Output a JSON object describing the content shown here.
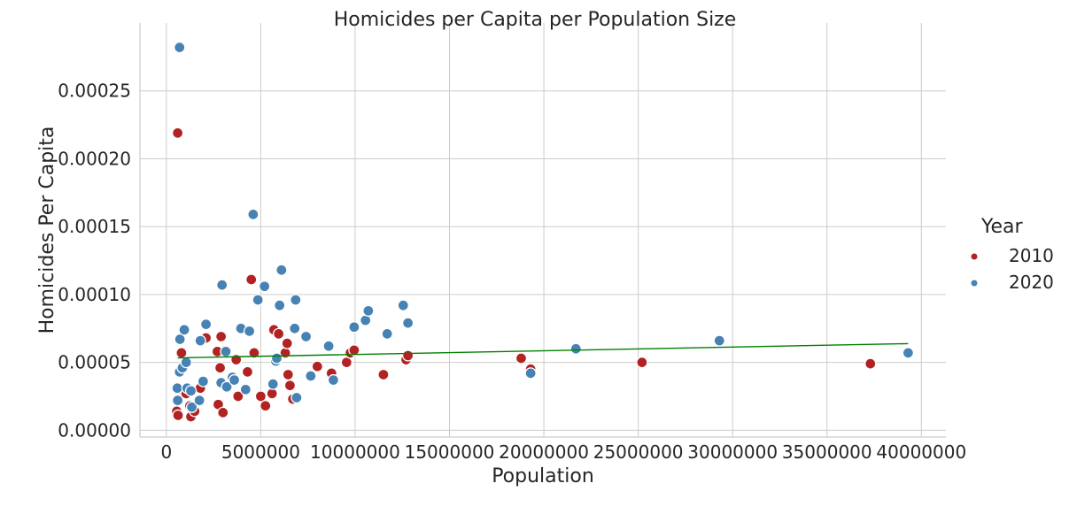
{
  "chart_data": {
    "type": "scatter",
    "title": "Homicides per Capita per Population Size",
    "xlabel": "Population",
    "ylabel": "Homicides Per Capita",
    "xlim": [
      -1400000,
      41300000
    ],
    "ylim": [
      -5e-06,
      0.0003
    ],
    "xticks": [
      0,
      5000000,
      10000000,
      15000000,
      20000000,
      25000000,
      30000000,
      35000000,
      40000000
    ],
    "xtick_labels": [
      "0",
      "5000000",
      "10000000",
      "15000000",
      "20000000",
      "25000000",
      "30000000",
      "35000000",
      "40000000"
    ],
    "yticks": [
      0.0,
      5e-05,
      0.0001,
      0.00015,
      0.0002,
      0.00025
    ],
    "ytick_labels": [
      "0.00000",
      "0.00005",
      "0.00010",
      "0.00015",
      "0.00020",
      "0.00025"
    ],
    "grid": true,
    "legend": {
      "title": "Year",
      "position": "right"
    },
    "series": [
      {
        "name": "2010",
        "color": "#b22222",
        "points": [
          [
            600000,
            0.000219
          ],
          [
            550000,
            1.4e-05
          ],
          [
            620000,
            1.1e-05
          ],
          [
            800000,
            5.7e-05
          ],
          [
            900000,
            2.9e-05
          ],
          [
            1050000,
            2.7e-05
          ],
          [
            1250000,
            1.8e-05
          ],
          [
            1300000,
            1e-05
          ],
          [
            1500000,
            1.4e-05
          ],
          [
            1800000,
            3.1e-05
          ],
          [
            2100000,
            6.8e-05
          ],
          [
            2700000,
            5.8e-05
          ],
          [
            2750000,
            1.9e-05
          ],
          [
            2850000,
            4.6e-05
          ],
          [
            2900000,
            6.9e-05
          ],
          [
            3000000,
            1.3e-05
          ],
          [
            3700000,
            5.2e-05
          ],
          [
            3800000,
            2.5e-05
          ],
          [
            4300000,
            4.3e-05
          ],
          [
            4500000,
            0.000111
          ],
          [
            4650000,
            5.7e-05
          ],
          [
            5000000,
            2.5e-05
          ],
          [
            5250000,
            1.8e-05
          ],
          [
            5600000,
            2.7e-05
          ],
          [
            5700000,
            7.4e-05
          ],
          [
            5950000,
            7.1e-05
          ],
          [
            6300000,
            5.7e-05
          ],
          [
            6400000,
            6.4e-05
          ],
          [
            6450000,
            4.1e-05
          ],
          [
            6550000,
            3.3e-05
          ],
          [
            6700000,
            2.3e-05
          ],
          [
            8000000,
            4.7e-05
          ],
          [
            8750000,
            4.2e-05
          ],
          [
            9550000,
            5e-05
          ],
          [
            9750000,
            5.7e-05
          ],
          [
            9950000,
            5.9e-05
          ],
          [
            11500000,
            4.1e-05
          ],
          [
            12700000,
            5.2e-05
          ],
          [
            12800000,
            5.5e-05
          ],
          [
            18800000,
            5.3e-05
          ],
          [
            19300000,
            4.5e-05
          ],
          [
            25200000,
            5e-05
          ],
          [
            37300000,
            4.9e-05
          ]
        ]
      },
      {
        "name": "2020",
        "color": "#4682b4",
        "points": [
          [
            700000,
            0.000282
          ],
          [
            580000,
            3.1e-05
          ],
          [
            600000,
            2.2e-05
          ],
          [
            700000,
            4.3e-05
          ],
          [
            720000,
            6.7e-05
          ],
          [
            850000,
            4.6e-05
          ],
          [
            950000,
            7.4e-05
          ],
          [
            1050000,
            5e-05
          ],
          [
            1100000,
            3.1e-05
          ],
          [
            1300000,
            2.9e-05
          ],
          [
            1350000,
            1.7e-05
          ],
          [
            1750000,
            2.2e-05
          ],
          [
            1800000,
            6.6e-05
          ],
          [
            1950000,
            3.6e-05
          ],
          [
            2100000,
            7.8e-05
          ],
          [
            2900000,
            3.5e-05
          ],
          [
            2950000,
            0.000107
          ],
          [
            3150000,
            5.8e-05
          ],
          [
            3200000,
            3.2e-05
          ],
          [
            3500000,
            3.9e-05
          ],
          [
            3600000,
            3.7e-05
          ],
          [
            3950000,
            7.5e-05
          ],
          [
            4200000,
            3e-05
          ],
          [
            4400000,
            7.3e-05
          ],
          [
            4600000,
            0.000159
          ],
          [
            4850000,
            9.6e-05
          ],
          [
            5200000,
            0.000106
          ],
          [
            5650000,
            3.4e-05
          ],
          [
            5800000,
            5.1e-05
          ],
          [
            5850000,
            5.3e-05
          ],
          [
            6000000,
            9.2e-05
          ],
          [
            6100000,
            0.000118
          ],
          [
            6800000,
            7.5e-05
          ],
          [
            6850000,
            9.6e-05
          ],
          [
            6900000,
            2.4e-05
          ],
          [
            7400000,
            6.9e-05
          ],
          [
            7650000,
            4e-05
          ],
          [
            8600000,
            6.2e-05
          ],
          [
            8850000,
            3.7e-05
          ],
          [
            9950000,
            7.6e-05
          ],
          [
            10550000,
            8.1e-05
          ],
          [
            10700000,
            8.8e-05
          ],
          [
            11700000,
            7.1e-05
          ],
          [
            12550000,
            9.2e-05
          ],
          [
            12800000,
            7.9e-05
          ],
          [
            19300000,
            4.2e-05
          ],
          [
            21700000,
            6e-05
          ],
          [
            29300000,
            6.6e-05
          ],
          [
            39300000,
            5.7e-05
          ]
        ]
      }
    ],
    "trendline": {
      "color": "#008000",
      "x": [
        600000,
        39300000
      ],
      "y": [
        5.33e-05,
        6.38e-05
      ]
    }
  }
}
